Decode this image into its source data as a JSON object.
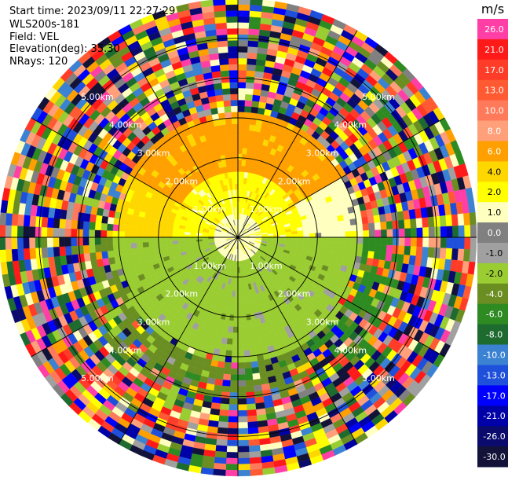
{
  "header": {
    "start_time": "Start time: 2023/09/11 22:27:29",
    "instrument": "WLS200s-181",
    "field": "Field: VEL",
    "elevation": "Elevation(deg): 35.30",
    "nrays": "NRays: 120"
  },
  "chart_data": {
    "type": "heatmap",
    "projection": "polar-ppi",
    "field": "VEL",
    "units": "m/s",
    "elevation_deg": 35.3,
    "n_rays": 120,
    "range_max_km": 6.0,
    "range_rings_km": [
      1,
      2,
      3,
      4,
      5
    ],
    "ring_labels": [
      "1.00km",
      "2.00km",
      "3.00km",
      "4.00km",
      "5.00km"
    ],
    "azimuth_spokes_deg": [
      0,
      30,
      60,
      90,
      120,
      150,
      180,
      210,
      240,
      270,
      300,
      330
    ],
    "colorbar": {
      "unit_label": "m/s",
      "ticks": [
        "26.0",
        "21.0",
        "17.0",
        "13.0",
        "10.0",
        "8.0",
        "6.0",
        "4.0",
        "2.0",
        "1.0",
        "0.0",
        "-1.0",
        "-2.0",
        "-4.0",
        "-6.0",
        "-8.0",
        "-10.0",
        "-13.0",
        "-17.0",
        "-21.0",
        "-26.0",
        "-30.0"
      ],
      "colors": [
        "#ff3fa6",
        "#ff1a1a",
        "#ff3c28",
        "#ff5a32",
        "#ff7a5a",
        "#ffa07a",
        "#ff9f00",
        "#ffd700",
        "#ffff00",
        "#ffffc0",
        "#808080",
        "#a0a0a0",
        "#9acd32",
        "#6b8e23",
        "#2e8b22",
        "#1e6b30",
        "#3c82d2",
        "#1e50dc",
        "#0000ff",
        "#0000a8",
        "#0b0b6e",
        "#131339"
      ]
    },
    "velocity_regions": [
      {
        "az_start": 0,
        "az_end": 360,
        "r_start": 0.0,
        "r_end": 0.6,
        "value": 0.5
      },
      {
        "az_start": 270,
        "az_end": 450,
        "r_start": 0.6,
        "r_end": 1.7,
        "value": 1.5
      },
      {
        "az_start": 300,
        "az_end": 420,
        "r_start": 1.7,
        "r_end": 3.1,
        "value": 4.5
      },
      {
        "az_start": 270,
        "az_end": 300,
        "r_start": 1.7,
        "r_end": 3.1,
        "value": 2.5
      },
      {
        "az_start": 60,
        "az_end": 90,
        "r_start": 1.7,
        "r_end": 3.1,
        "value": 0.5
      },
      {
        "az_start": 90,
        "az_end": 270,
        "r_start": 0.6,
        "r_end": 3.1,
        "value": -3.0
      },
      {
        "az_start": 90,
        "az_end": 150,
        "r_start": 0.6,
        "r_end": 1.2,
        "value": -0.5
      },
      {
        "az_start": 210,
        "az_end": 270,
        "r_start": 0.6,
        "r_end": 1.2,
        "value": -0.5
      },
      {
        "az_start": 150,
        "az_end": 210,
        "r_start": 1.2,
        "r_end": 4.2,
        "value": -5.0
      },
      {
        "az_start": 90,
        "az_end": 150,
        "r_start": 3.1,
        "r_end": 4.2,
        "value": -6.0
      },
      {
        "az_start": 210,
        "az_end": 270,
        "r_start": 3.1,
        "r_end": 4.2,
        "value": -4.0
      },
      {
        "az_start": 240,
        "az_end": 270,
        "r_start": 4.2,
        "r_end": 6.0,
        "value": -9.0
      }
    ],
    "noise_range_start_km": 3.0
  }
}
